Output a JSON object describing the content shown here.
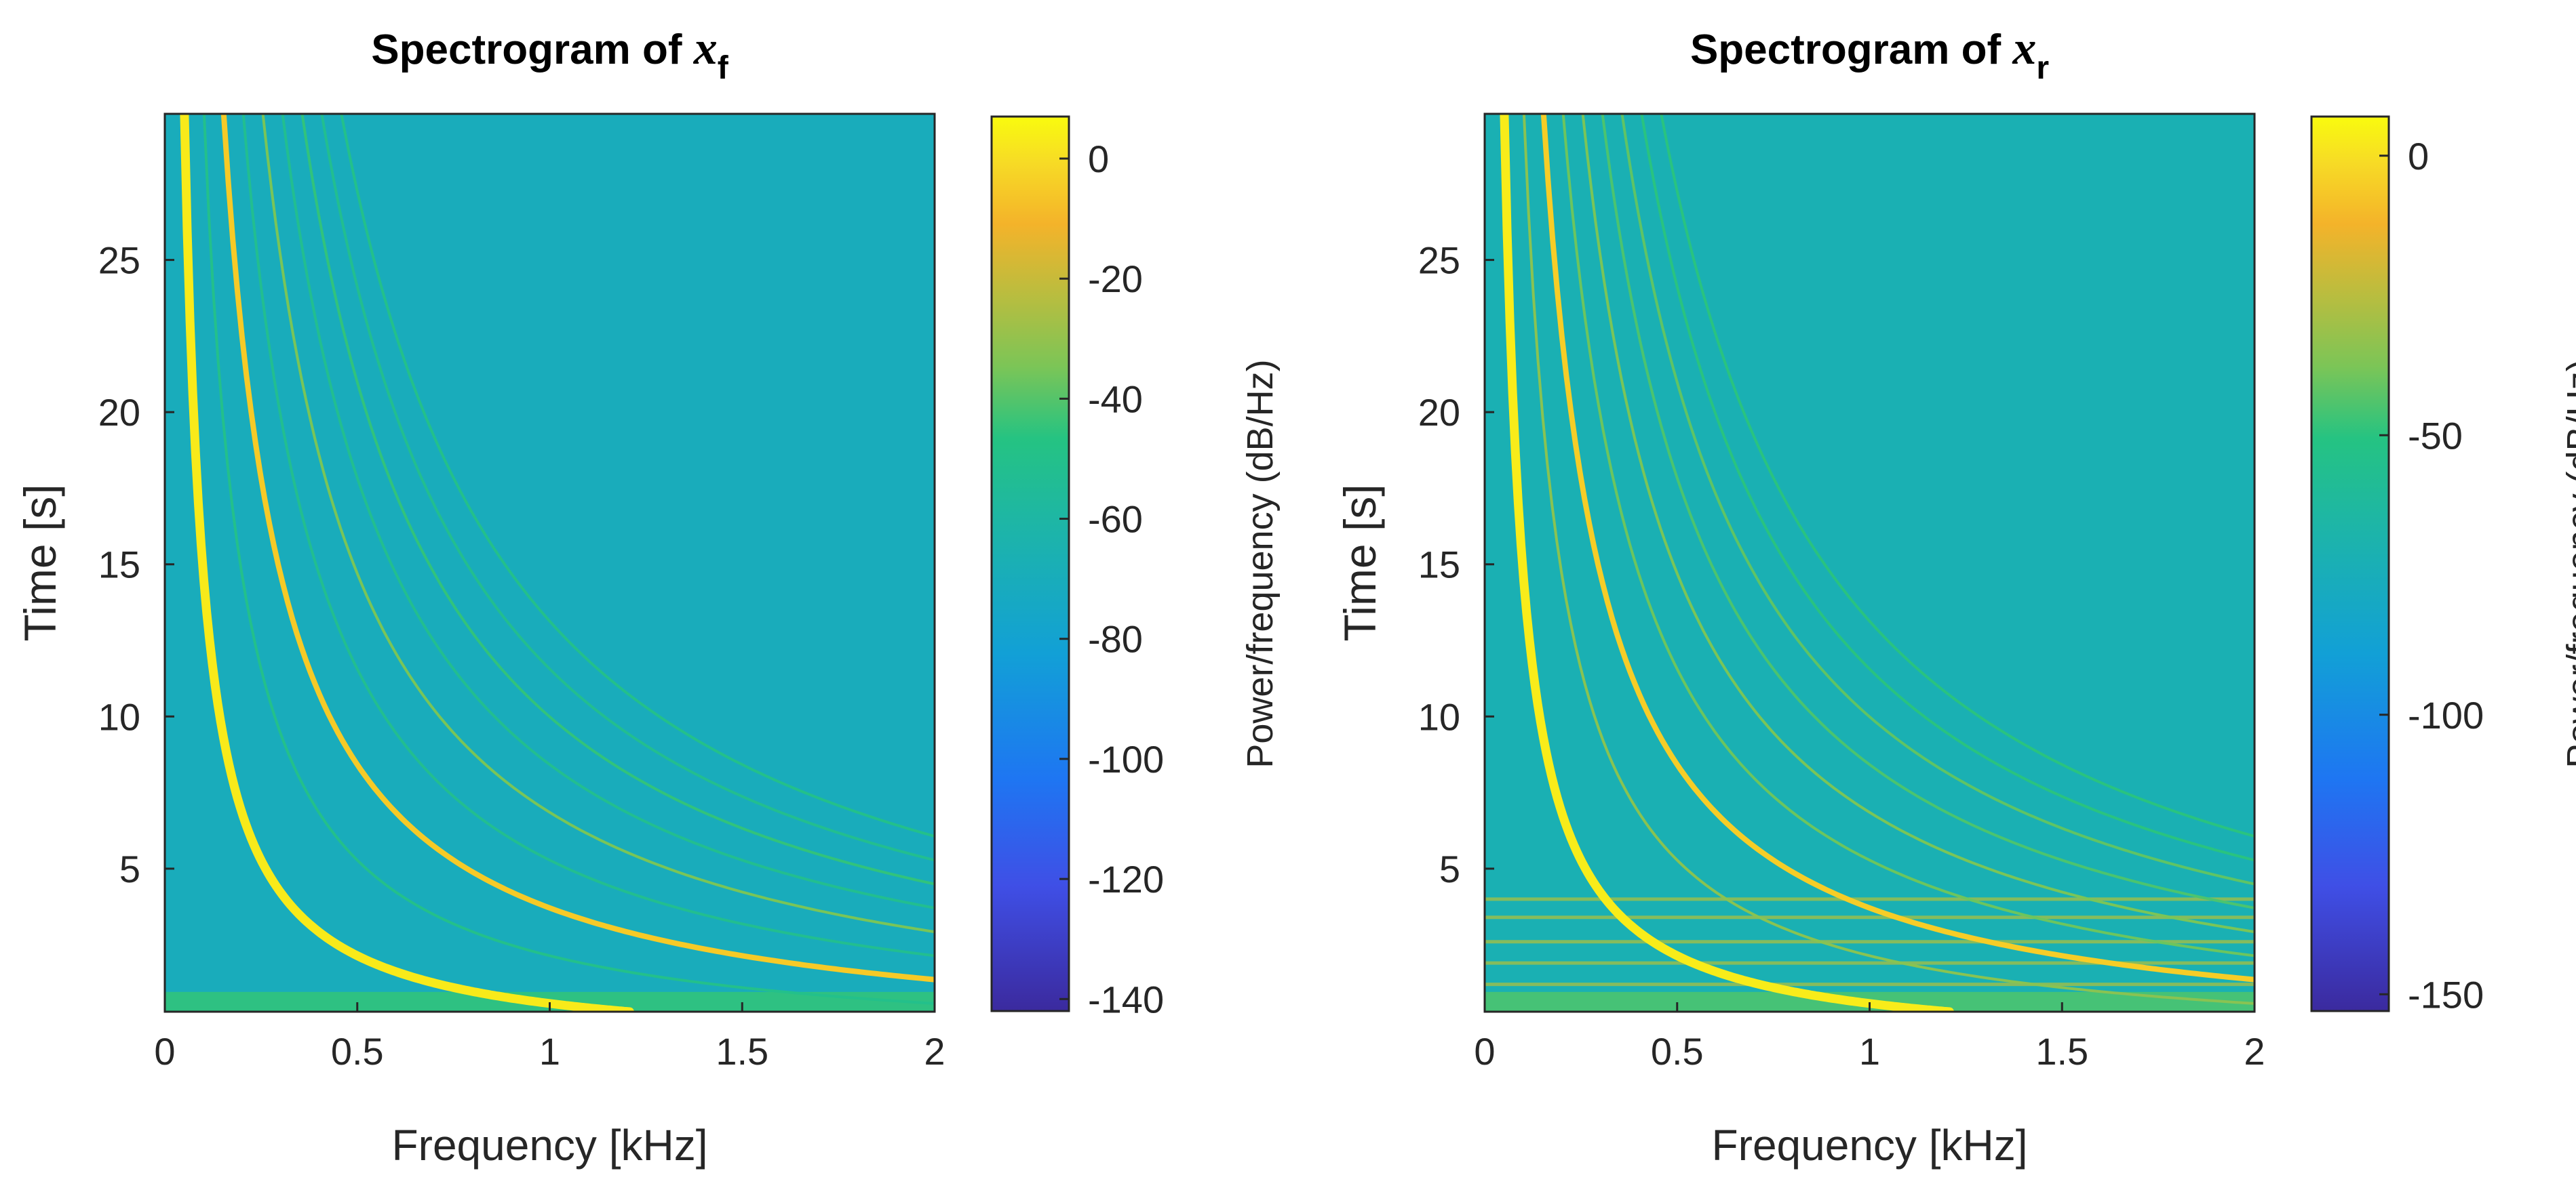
{
  "chart_data": [
    {
      "type": "heatmap",
      "title_prefix": "Spectrogram of",
      "title_var": "x",
      "title_sub": "f",
      "xlabel": "Frequency [kHz]",
      "ylabel": "Time [s]",
      "xlim": [
        0,
        2
      ],
      "ylim": [
        0.3,
        29.8
      ],
      "xticks": [
        0,
        0.5,
        1,
        1.5,
        2
      ],
      "xtick_labels": [
        "0",
        "0.5",
        "1",
        "1.5",
        "2"
      ],
      "yticks": [
        5,
        10,
        15,
        20,
        25
      ],
      "ytick_labels": [
        "5",
        "10",
        "15",
        "20",
        "25"
      ],
      "colorbar": {
        "label": "Power/frequency (dB/Hz)",
        "range": [
          -142,
          7
        ],
        "ticks": [
          0,
          -20,
          -40,
          -60,
          -80,
          -100,
          -120,
          -140
        ],
        "tick_labels": [
          "0",
          "-20",
          "-40",
          "-60",
          "-80",
          "-100",
          "-120",
          "-140"
        ]
      },
      "background_level_db": -70,
      "harmonic_curves": [
        {
          "harmonic": 1,
          "f0_khz": 1.57,
          "power_db": 3
        },
        {
          "harmonic": 2,
          "f0_khz": 3.14,
          "power_db": -50
        },
        {
          "harmonic": 3,
          "f0_khz": 4.71,
          "power_db": -5
        },
        {
          "harmonic": 4,
          "f0_khz": 6.28,
          "power_db": -52
        },
        {
          "harmonic": 5,
          "f0_khz": 7.85,
          "power_db": -35
        },
        {
          "harmonic": 6,
          "f0_khz": 9.42,
          "power_db": -52
        },
        {
          "harmonic": 7,
          "f0_khz": 10.99,
          "power_db": -45
        },
        {
          "harmonic": 8,
          "f0_khz": 12.56,
          "power_db": -52
        },
        {
          "harmonic": 9,
          "f0_khz": 14.13,
          "power_db": -50
        }
      ],
      "horizontal_artifacts_s": []
    },
    {
      "type": "heatmap",
      "title_prefix": "Spectrogram of",
      "title_var": "x",
      "title_sub": "r",
      "xlabel": "Frequency [kHz]",
      "ylabel": "Time [s]",
      "xlim": [
        0,
        2
      ],
      "ylim": [
        0.3,
        29.8
      ],
      "xticks": [
        0,
        0.5,
        1,
        1.5,
        2
      ],
      "xtick_labels": [
        "0",
        "0.5",
        "1",
        "1.5",
        "2"
      ],
      "yticks": [
        5,
        10,
        15,
        20,
        25
      ],
      "ytick_labels": [
        "5",
        "10",
        "15",
        "20",
        "25"
      ],
      "colorbar": {
        "label": "Power/frequency (dB/Hz)",
        "range": [
          -153,
          7
        ],
        "ticks": [
          0,
          -50,
          -100,
          -150
        ],
        "tick_labels": [
          "0",
          "-50",
          "-100",
          "-150"
        ]
      },
      "background_level_db": -72,
      "harmonic_curves": [
        {
          "harmonic": 1,
          "f0_khz": 1.57,
          "power_db": 3
        },
        {
          "harmonic": 2,
          "f0_khz": 3.14,
          "power_db": -35
        },
        {
          "harmonic": 3,
          "f0_khz": 4.71,
          "power_db": -5
        },
        {
          "harmonic": 4,
          "f0_khz": 6.28,
          "power_db": -40
        },
        {
          "harmonic": 5,
          "f0_khz": 7.85,
          "power_db": -38
        },
        {
          "harmonic": 6,
          "f0_khz": 9.42,
          "power_db": -45
        },
        {
          "harmonic": 7,
          "f0_khz": 10.99,
          "power_db": -42
        },
        {
          "harmonic": 8,
          "f0_khz": 12.56,
          "power_db": -50
        },
        {
          "harmonic": 9,
          "f0_khz": 14.13,
          "power_db": -50
        }
      ],
      "horizontal_artifacts_s": [
        1.2,
        1.9,
        2.6,
        3.4,
        4.0
      ]
    }
  ]
}
